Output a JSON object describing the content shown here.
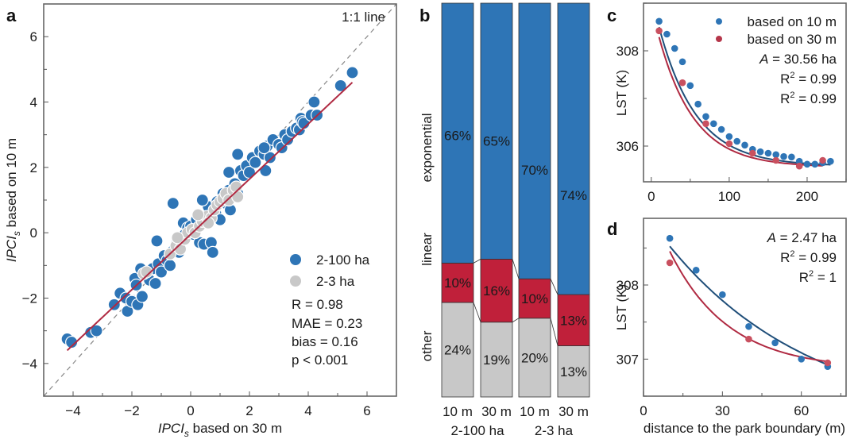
{
  "colors": {
    "blue": "#2e75b6",
    "red": "#c0203a",
    "gray": "#c8c8c8",
    "dark_blue_line": "#1f4e79",
    "red_line": "#b02a42",
    "stats_text": "#2a5b8c",
    "red_text": "#b5364a"
  },
  "chart_data": [
    {
      "panel": "a",
      "type": "scatter",
      "xlabel": "IPCI_s based on 30 m",
      "ylabel": "IPCI_s based on 10 m",
      "xlabel_main": "IPCI",
      "xlabel_sub": "s",
      "xlabel_rest": " based on 30 m",
      "ylabel_main": "IPCI",
      "ylabel_sub": "s",
      "ylabel_rest": " based on 10 m",
      "xlim": [
        -5,
        7
      ],
      "ylim": [
        -5,
        7
      ],
      "xticks": [
        -4,
        -2,
        0,
        2,
        4,
        6
      ],
      "yticks": [
        -4,
        -2,
        0,
        2,
        4,
        6
      ],
      "annotation_1to1": "1:1 line",
      "legend": [
        "2-100 ha",
        "2-3 ha"
      ],
      "stats": [
        "R = 0.98",
        "MAE = 0.23",
        "bias = 0.16",
        "p < 0.001"
      ],
      "fit_line": {
        "x": [
          -4.2,
          5.5
        ],
        "y": [
          -3.6,
          4.6
        ]
      },
      "series": [
        {
          "name": "2-100 ha",
          "points": [
            [
              -4.2,
              -3.25
            ],
            [
              -4.05,
              -3.35
            ],
            [
              -3.4,
              -3.05
            ],
            [
              -3.2,
              -3.0
            ],
            [
              -2.6,
              -2.2
            ],
            [
              -2.4,
              -1.85
            ],
            [
              -2.2,
              -2.0
            ],
            [
              -2.15,
              -2.4
            ],
            [
              -2.0,
              -2.1
            ],
            [
              -1.9,
              -1.4
            ],
            [
              -1.85,
              -1.6
            ],
            [
              -1.8,
              -2.2
            ],
            [
              -1.65,
              -1.95
            ],
            [
              -1.7,
              -1.1
            ],
            [
              -1.5,
              -1.25
            ],
            [
              -1.4,
              -1.45
            ],
            [
              -1.3,
              -1.1
            ],
            [
              -1.2,
              -1.55
            ],
            [
              -1.1,
              -0.95
            ],
            [
              -1.0,
              -1.2
            ],
            [
              -0.9,
              -0.7
            ],
            [
              -0.8,
              -0.85
            ],
            [
              -0.7,
              -1.0
            ],
            [
              -0.6,
              -0.55
            ],
            [
              -0.5,
              -0.35
            ],
            [
              -0.4,
              -0.6
            ],
            [
              -0.3,
              -0.2
            ],
            [
              -0.25,
              0.3
            ],
            [
              -0.2,
              -0.05
            ],
            [
              -0.1,
              0.15
            ],
            [
              0.0,
              0.2
            ],
            [
              0.1,
              -0.05
            ],
            [
              0.2,
              0.4
            ],
            [
              0.3,
              -0.3
            ],
            [
              0.45,
              -0.35
            ],
            [
              0.5,
              0.5
            ],
            [
              0.7,
              -0.3
            ],
            [
              0.75,
              -0.6
            ],
            [
              0.6,
              0.8
            ],
            [
              0.85,
              0.6
            ],
            [
              0.9,
              0.95
            ],
            [
              1.0,
              0.4
            ],
            [
              1.1,
              1.2
            ],
            [
              1.2,
              0.9
            ],
            [
              1.3,
              1.3
            ],
            [
              1.35,
              0.7
            ],
            [
              1.5,
              1.5
            ],
            [
              1.6,
              1.2
            ],
            [
              1.7,
              1.9
            ],
            [
              1.8,
              1.75
            ],
            [
              1.9,
              2.05
            ],
            [
              2.0,
              1.85
            ],
            [
              2.1,
              2.3
            ],
            [
              2.2,
              2.15
            ],
            [
              2.35,
              2.5
            ],
            [
              2.5,
              2.4
            ],
            [
              2.6,
              2.65
            ],
            [
              2.7,
              2.3
            ],
            [
              2.8,
              2.85
            ],
            [
              3.0,
              2.7
            ],
            [
              3.1,
              2.6
            ],
            [
              3.2,
              3.0
            ],
            [
              3.3,
              2.85
            ],
            [
              3.45,
              3.1
            ],
            [
              3.6,
              3.2
            ],
            [
              3.7,
              3.15
            ],
            [
              3.75,
              3.5
            ],
            [
              3.8,
              3.4
            ],
            [
              3.85,
              3.35
            ],
            [
              4.1,
              3.6
            ],
            [
              4.2,
              4.0
            ],
            [
              4.3,
              3.6
            ],
            [
              5.1,
              4.5
            ],
            [
              5.5,
              4.9
            ],
            [
              1.6,
              2.4
            ],
            [
              1.3,
              1.85
            ],
            [
              0.4,
              1.0
            ],
            [
              -0.6,
              0.9
            ],
            [
              -1.15,
              -0.25
            ],
            [
              2.55,
              1.9
            ],
            [
              2.5,
              2.6
            ]
          ]
        },
        {
          "name": "2-3 ha",
          "points": [
            [
              -1.6,
              -1.25
            ],
            [
              -1.5,
              -1.2
            ],
            [
              -0.7,
              -0.65
            ],
            [
              -0.5,
              -0.4
            ],
            [
              -0.35,
              -0.5
            ],
            [
              -0.2,
              -0.2
            ],
            [
              -0.1,
              0.0
            ],
            [
              0.05,
              0.1
            ],
            [
              0.15,
              0.0
            ],
            [
              0.3,
              0.2
            ],
            [
              0.4,
              0.35
            ],
            [
              0.55,
              0.5
            ],
            [
              0.7,
              0.45
            ],
            [
              0.8,
              0.7
            ],
            [
              0.9,
              0.85
            ],
            [
              1.0,
              0.95
            ],
            [
              1.1,
              1.05
            ],
            [
              1.2,
              1.2
            ],
            [
              1.3,
              1.0
            ],
            [
              1.45,
              1.3
            ],
            [
              1.55,
              1.4
            ],
            [
              0.25,
              0.55
            ],
            [
              0.6,
              0.3
            ],
            [
              -0.45,
              -0.15
            ],
            [
              1.6,
              1.1
            ]
          ]
        }
      ]
    },
    {
      "panel": "b",
      "type": "bar",
      "stacked": true,
      "categories": [
        "10 m",
        "30 m",
        "10 m",
        "30 m"
      ],
      "groups": [
        "2-100 ha",
        "2-3 ha"
      ],
      "ylabels": [
        "exponential",
        "linear",
        "other"
      ],
      "series": [
        {
          "name": "other",
          "values": [
            24,
            19,
            20,
            13
          ],
          "labels": [
            "24%",
            "19%",
            "20%",
            "13%"
          ]
        },
        {
          "name": "linear",
          "values": [
            10,
            16,
            10,
            13
          ],
          "labels": [
            "10%",
            "16%",
            "10%",
            "13%"
          ]
        },
        {
          "name": "exponential",
          "values": [
            66,
            65,
            70,
            74
          ],
          "labels": [
            "66%",
            "65%",
            "70%",
            "74%"
          ]
        }
      ]
    },
    {
      "panel": "c",
      "type": "scatter",
      "ylabel": "LST (K)",
      "xlim": [
        -10,
        250
      ],
      "ylim": [
        305.25,
        309.0
      ],
      "xticks": [
        0,
        100,
        200
      ],
      "yticks": [
        306,
        308
      ],
      "legend": [
        "based on 10 m",
        "based on 30 m"
      ],
      "area_label_italic": "A",
      "area_label_rest": " = 30.56 ha",
      "r2_10m": "= 0.99",
      "r2_30m": "= 0.99",
      "series": [
        {
          "name": "based on 10 m",
          "x": [
            10,
            20,
            30,
            40,
            50,
            60,
            70,
            80,
            90,
            100,
            110,
            120,
            130,
            140,
            150,
            160,
            170,
            180,
            190,
            200,
            210,
            220,
            230
          ],
          "y": [
            308.62,
            308.35,
            308.05,
            307.77,
            307.27,
            306.88,
            306.62,
            306.47,
            306.35,
            306.2,
            306.1,
            306.02,
            305.93,
            305.88,
            305.85,
            305.82,
            305.78,
            305.77,
            305.68,
            305.62,
            305.62,
            305.65,
            305.68
          ],
          "fit": {
            "a": 3.6,
            "b": 0.021,
            "c": 305.58
          }
        },
        {
          "name": "based on 30 m",
          "x": [
            10,
            40,
            70,
            100,
            130,
            160,
            190,
            220
          ],
          "y": [
            308.42,
            307.33,
            306.47,
            306.05,
            305.85,
            305.7,
            305.58,
            305.7
          ],
          "fit": {
            "a": 3.4,
            "b": 0.022,
            "c": 305.56
          }
        }
      ]
    },
    {
      "panel": "d",
      "type": "scatter",
      "ylabel": "LST (K)",
      "xlabel": "distance to the park boundary (m)",
      "xlim": [
        0,
        77
      ],
      "ylim": [
        306.5,
        308.9
      ],
      "xticks": [
        0,
        30,
        60
      ],
      "yticks": [
        307,
        308
      ],
      "area_label_italic": "A",
      "area_label_rest": " = 2.47 ha",
      "r2_10m": "= 0.99",
      "r2_30m": "= 1",
      "series": [
        {
          "name": "based on 10 m",
          "x": [
            10,
            20,
            30,
            40,
            50,
            60,
            70
          ],
          "y": [
            308.63,
            308.2,
            307.87,
            307.44,
            307.22,
            307.0,
            306.9
          ],
          "fit": {
            "a": 2.9,
            "b": 0.018,
            "c": 306.1
          }
        },
        {
          "name": "based on 30 m",
          "x": [
            10,
            40,
            70
          ],
          "y": [
            308.3,
            307.27,
            306.95
          ],
          "fit": {
            "a": 2.5,
            "b": 0.045,
            "c": 306.86
          }
        }
      ]
    }
  ]
}
